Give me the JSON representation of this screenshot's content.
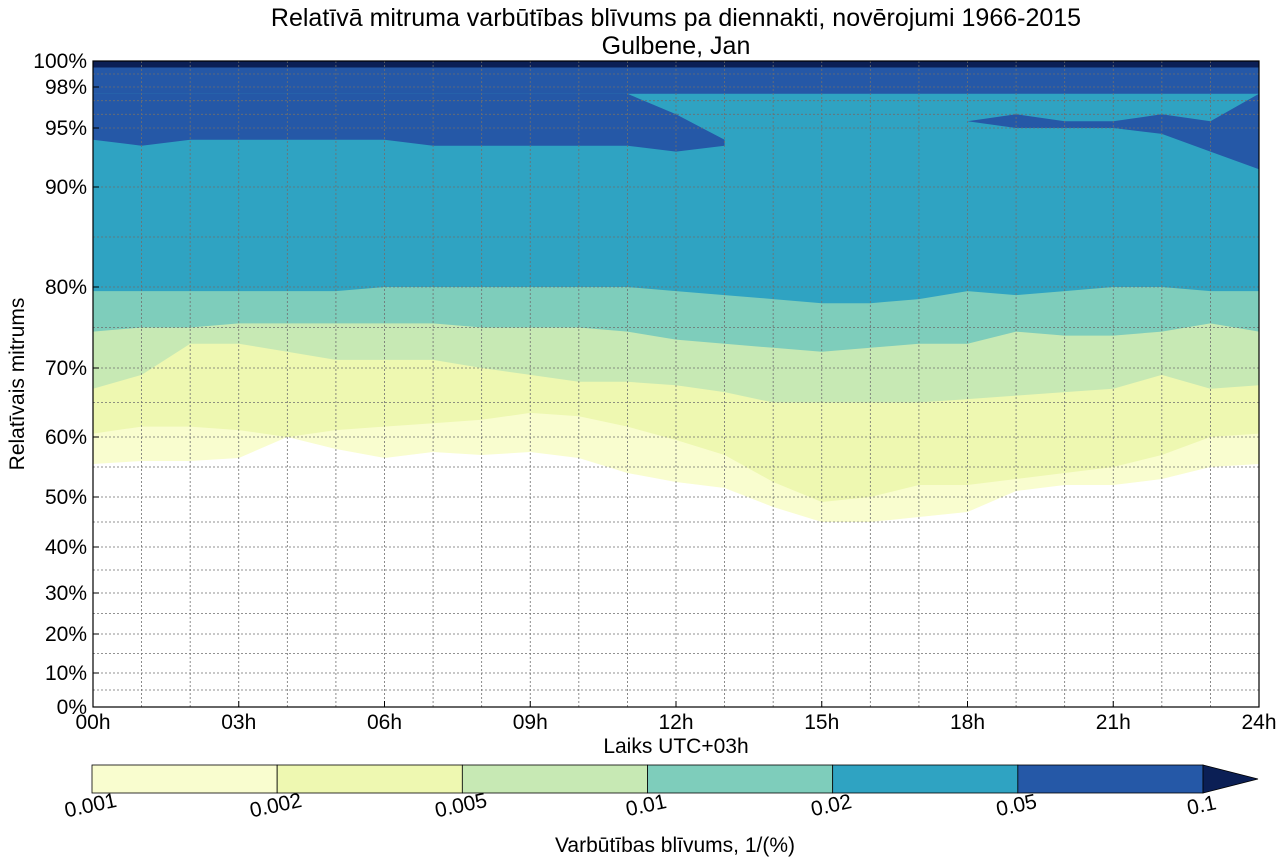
{
  "chart_data": {
    "type": "contourf",
    "title": "Relatīvā mitruma varbūtības blīvums pa diennakti, novērojumi 1966-2015",
    "subtitle": "Gulbene, Jan",
    "xlabel": "Laiks UTC+03h",
    "ylabel": "Relatīvais mitrums",
    "x_ticks": [
      "00h",
      "03h",
      "06h",
      "09h",
      "12h",
      "15h",
      "18h",
      "21h",
      "24h"
    ],
    "y_ticks": [
      "0%",
      "10%",
      "20%",
      "30%",
      "40%",
      "50%",
      "60%",
      "70%",
      "80%",
      "90%",
      "95%",
      "98%",
      "100%"
    ],
    "xlim": [
      0,
      24
    ],
    "ylim": [
      0,
      100
    ],
    "grid": true,
    "colorbar": {
      "label": "Varbūtības blīvums, 1/(%)",
      "position": "bottom",
      "levels": [
        "0.001",
        "0.002",
        "0.005",
        "0.01",
        "0.02",
        "0.05",
        "0.1"
      ],
      "colors": [
        "#f9fdcf",
        "#eef8b1",
        "#c7e9b4",
        "#7ecdbb",
        "#2fa3c2",
        "#2558a7",
        "#0b1f55"
      ],
      "extend": "max"
    },
    "hours": [
      0,
      1,
      2,
      3,
      4,
      5,
      6,
      7,
      8,
      9,
      10,
      11,
      12,
      13,
      14,
      15,
      16,
      17,
      18,
      19,
      20,
      21,
      22,
      23,
      24
    ],
    "level_boundaries": [
      {
        "level": "0.001",
        "rh": [
          55.5,
          56,
          56,
          56.5,
          60,
          58,
          56.5,
          57.5,
          57,
          57.5,
          56.5,
          54,
          52.5,
          51.5,
          48,
          45,
          45,
          46,
          47,
          51,
          52,
          52,
          53,
          55,
          55.5
        ]
      },
      {
        "level": "0.002",
        "rh": [
          60.5,
          61.5,
          61.5,
          61,
          60,
          61,
          61.5,
          62,
          62.5,
          63.5,
          63,
          61.5,
          59.5,
          57,
          52.5,
          49,
          50,
          52,
          52,
          53,
          54,
          55,
          57,
          60,
          60.5
        ]
      },
      {
        "level": "0.005",
        "rh": [
          67,
          69,
          73,
          73,
          72,
          71,
          71,
          71,
          70,
          69,
          68,
          68,
          67.5,
          66.5,
          65,
          65,
          65,
          65,
          65.5,
          66,
          66.5,
          67,
          69,
          67,
          67.5
        ]
      },
      {
        "level": "0.01",
        "rh": [
          74.5,
          75,
          75,
          75.5,
          75.5,
          75.5,
          75.5,
          75.5,
          75,
          75,
          75,
          74.5,
          73.5,
          73,
          72.5,
          72,
          72.5,
          73,
          73,
          74.5,
          74,
          74,
          74.5,
          75.5,
          74.5
        ]
      },
      {
        "level": "0.02",
        "rh": [
          79.5,
          79.5,
          79.5,
          79.5,
          79.5,
          79.5,
          80,
          80,
          80,
          80,
          80,
          80,
          79.5,
          79,
          78.5,
          78,
          78,
          78.5,
          79.5,
          79,
          79.5,
          80,
          80,
          79.5,
          79.5
        ]
      },
      {
        "level": "0.05",
        "rh": [
          97.5,
          97.5,
          97.5,
          97.5,
          97.5,
          97.5,
          97.5,
          97.5,
          97.5,
          97.5,
          97.5,
          97.5,
          97.5,
          97.5,
          97.5,
          97.5,
          97.5,
          97.5,
          97.5,
          97.5,
          97.5,
          97.5,
          97.5,
          97.5,
          97.5
        ]
      },
      {
        "level": "0.1",
        "rh": [
          99.5,
          99.5,
          99.5,
          99.5,
          99.5,
          99.5,
          99.5,
          99.5,
          99.5,
          99.5,
          99.5,
          99.5,
          99.5,
          99.5,
          99.5,
          99.5,
          99.5,
          99.5,
          99.5,
          99.5,
          99.5,
          99.5,
          99.5,
          99.5,
          99.5
        ]
      }
    ],
    "high_density_band": {
      "level": "0.05",
      "segments": [
        {
          "hours": [
            0,
            1,
            2,
            3,
            4,
            5,
            6,
            7,
            8,
            9,
            10,
            11,
            12,
            13
          ],
          "upper": [
            97.5,
            97.5,
            97.5,
            97.5,
            97.5,
            97.5,
            97.5,
            97.5,
            97.5,
            97.5,
            97.5,
            97.5,
            96,
            94
          ],
          "lower": [
            94,
            93.5,
            94,
            94,
            94,
            94,
            94,
            93.5,
            93.5,
            93.5,
            93.5,
            93.5,
            93,
            93.5
          ]
        },
        {
          "hours": [
            18,
            19,
            20,
            21,
            22,
            23,
            24
          ],
          "upper": [
            95.5,
            96,
            95.5,
            95.5,
            96,
            95.5,
            97.5
          ],
          "lower": [
            95.5,
            95,
            95,
            95,
            94.5,
            93,
            91.5
          ]
        }
      ]
    }
  }
}
